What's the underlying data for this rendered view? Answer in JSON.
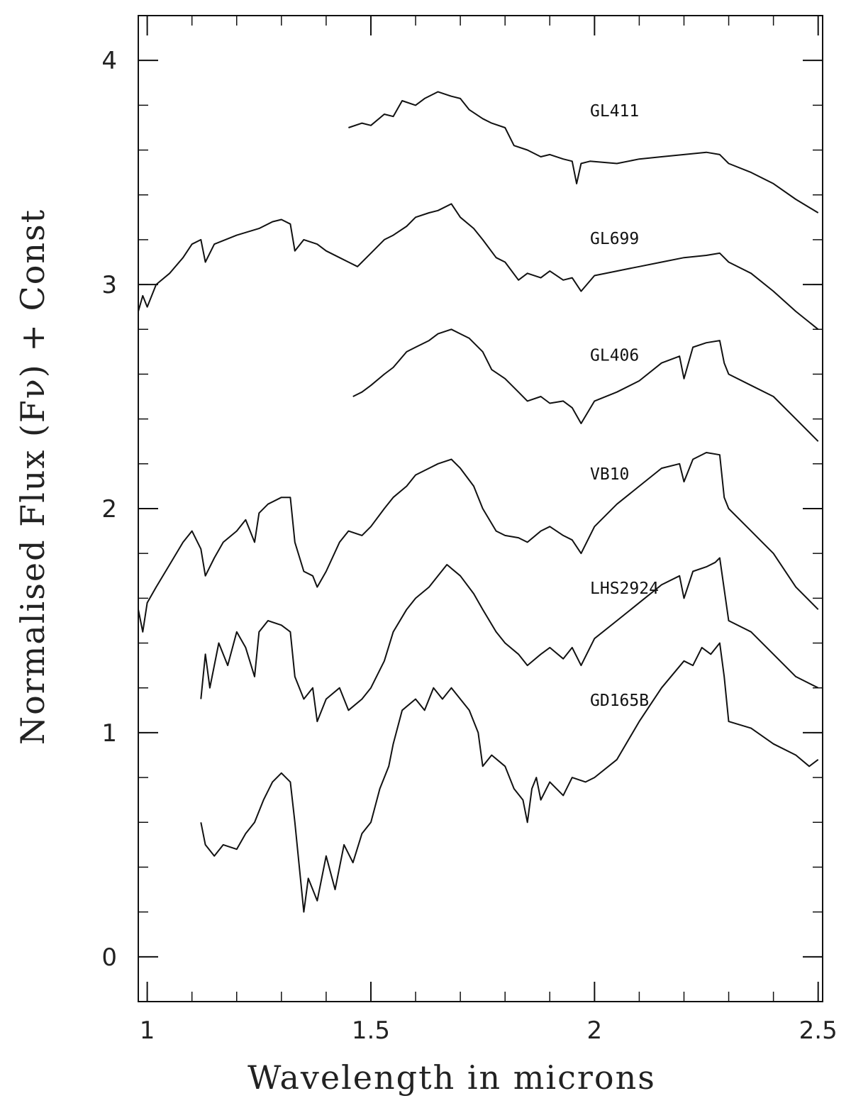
{
  "chart_data": {
    "type": "line",
    "xlabel": "Wavelength in microns",
    "ylabel": "Normalised Flux (Fν) + Const",
    "xlim": [
      0.98,
      2.51
    ],
    "ylim": [
      -0.2,
      4.2
    ],
    "x_ticks": [
      1,
      1.5,
      2,
      2.5
    ],
    "x_tick_labels": [
      "1",
      "1.5",
      "2",
      "2.5"
    ],
    "y_ticks": [
      0,
      1,
      2,
      3,
      4
    ],
    "y_tick_labels": [
      "0",
      "1",
      "2",
      "3",
      "4"
    ],
    "x_minor_step": 0.1,
    "y_minor_step": 0.2,
    "grid": false,
    "series": [
      {
        "name": "GL411",
        "label_pos": [
          1.99,
          3.75
        ],
        "x": [
          1.45,
          1.48,
          1.5,
          1.53,
          1.55,
          1.57,
          1.6,
          1.62,
          1.65,
          1.68,
          1.7,
          1.72,
          1.75,
          1.77,
          1.8,
          1.82,
          1.85,
          1.88,
          1.9,
          1.93,
          1.95,
          1.96,
          1.97,
          1.99,
          2.05,
          2.1,
          2.15,
          2.2,
          2.25,
          2.28,
          2.3,
          2.35,
          2.4,
          2.45,
          2.5
        ],
        "y": [
          3.7,
          3.72,
          3.71,
          3.76,
          3.75,
          3.82,
          3.8,
          3.83,
          3.86,
          3.84,
          3.83,
          3.78,
          3.74,
          3.72,
          3.7,
          3.62,
          3.6,
          3.57,
          3.58,
          3.56,
          3.55,
          3.45,
          3.54,
          3.55,
          3.54,
          3.56,
          3.57,
          3.58,
          3.59,
          3.58,
          3.54,
          3.5,
          3.45,
          3.38,
          3.32
        ]
      },
      {
        "name": "GL699",
        "label_pos": [
          1.99,
          3.18
        ],
        "x": [
          0.98,
          0.99,
          1.0,
          1.02,
          1.05,
          1.08,
          1.1,
          1.12,
          1.13,
          1.15,
          1.2,
          1.25,
          1.28,
          1.3,
          1.32,
          1.33,
          1.35,
          1.38,
          1.4,
          1.43,
          1.45,
          1.47,
          1.5,
          1.53,
          1.55,
          1.58,
          1.6,
          1.63,
          1.65,
          1.68,
          1.7,
          1.73,
          1.75,
          1.78,
          1.8,
          1.83,
          1.85,
          1.88,
          1.9,
          1.93,
          1.95,
          1.97,
          2.0,
          2.05,
          2.1,
          2.15,
          2.2,
          2.25,
          2.28,
          2.3,
          2.35,
          2.4,
          2.45,
          2.5
        ],
        "y": [
          2.88,
          2.95,
          2.9,
          3.0,
          3.05,
          3.12,
          3.18,
          3.2,
          3.1,
          3.18,
          3.22,
          3.25,
          3.28,
          3.29,
          3.27,
          3.15,
          3.2,
          3.18,
          3.15,
          3.12,
          3.1,
          3.08,
          3.14,
          3.2,
          3.22,
          3.26,
          3.3,
          3.32,
          3.33,
          3.36,
          3.3,
          3.25,
          3.2,
          3.12,
          3.1,
          3.02,
          3.05,
          3.03,
          3.06,
          3.02,
          3.03,
          2.97,
          3.04,
          3.06,
          3.08,
          3.1,
          3.12,
          3.13,
          3.14,
          3.1,
          3.05,
          2.97,
          2.88,
          2.8
        ]
      },
      {
        "name": "GL406",
        "label_pos": [
          1.99,
          2.66
        ],
        "x": [
          1.46,
          1.48,
          1.5,
          1.53,
          1.55,
          1.58,
          1.6,
          1.63,
          1.65,
          1.68,
          1.7,
          1.72,
          1.75,
          1.77,
          1.8,
          1.83,
          1.85,
          1.88,
          1.9,
          1.93,
          1.95,
          1.97,
          2.0,
          2.05,
          2.1,
          2.15,
          2.19,
          2.2,
          2.22,
          2.25,
          2.28,
          2.29,
          2.3,
          2.35,
          2.4,
          2.45,
          2.5
        ],
        "y": [
          2.5,
          2.52,
          2.55,
          2.6,
          2.63,
          2.7,
          2.72,
          2.75,
          2.78,
          2.8,
          2.78,
          2.76,
          2.7,
          2.62,
          2.58,
          2.52,
          2.48,
          2.5,
          2.47,
          2.48,
          2.45,
          2.38,
          2.48,
          2.52,
          2.57,
          2.65,
          2.68,
          2.58,
          2.72,
          2.74,
          2.75,
          2.65,
          2.6,
          2.55,
          2.5,
          2.4,
          2.3
        ]
      },
      {
        "name": "VB10",
        "label_pos": [
          1.99,
          2.13
        ],
        "x": [
          0.98,
          0.99,
          1.0,
          1.02,
          1.05,
          1.08,
          1.1,
          1.12,
          1.13,
          1.15,
          1.17,
          1.2,
          1.22,
          1.24,
          1.25,
          1.27,
          1.3,
          1.32,
          1.33,
          1.35,
          1.37,
          1.38,
          1.4,
          1.43,
          1.45,
          1.48,
          1.5,
          1.53,
          1.55,
          1.58,
          1.6,
          1.63,
          1.65,
          1.68,
          1.7,
          1.73,
          1.75,
          1.78,
          1.8,
          1.83,
          1.85,
          1.88,
          1.9,
          1.93,
          1.95,
          1.97,
          2.0,
          2.05,
          2.1,
          2.15,
          2.19,
          2.2,
          2.22,
          2.25,
          2.28,
          2.29,
          2.3,
          2.35,
          2.4,
          2.45,
          2.5
        ],
        "y": [
          1.55,
          1.45,
          1.58,
          1.65,
          1.75,
          1.85,
          1.9,
          1.82,
          1.7,
          1.78,
          1.85,
          1.9,
          1.95,
          1.85,
          1.98,
          2.02,
          2.05,
          2.05,
          1.85,
          1.72,
          1.7,
          1.65,
          1.72,
          1.85,
          1.9,
          1.88,
          1.92,
          2.0,
          2.05,
          2.1,
          2.15,
          2.18,
          2.2,
          2.22,
          2.18,
          2.1,
          2.0,
          1.9,
          1.88,
          1.87,
          1.85,
          1.9,
          1.92,
          1.88,
          1.86,
          1.8,
          1.92,
          2.02,
          2.1,
          2.18,
          2.2,
          2.12,
          2.22,
          2.25,
          2.24,
          2.05,
          2.0,
          1.9,
          1.8,
          1.65,
          1.55
        ]
      },
      {
        "name": "LHS2924",
        "label_pos": [
          1.99,
          1.62
        ],
        "x": [
          1.12,
          1.13,
          1.14,
          1.16,
          1.18,
          1.2,
          1.22,
          1.24,
          1.25,
          1.27,
          1.3,
          1.32,
          1.33,
          1.35,
          1.37,
          1.38,
          1.4,
          1.43,
          1.45,
          1.48,
          1.5,
          1.53,
          1.55,
          1.58,
          1.6,
          1.63,
          1.65,
          1.67,
          1.7,
          1.73,
          1.75,
          1.78,
          1.8,
          1.83,
          1.85,
          1.88,
          1.9,
          1.93,
          1.95,
          1.97,
          2.0,
          2.05,
          2.1,
          2.15,
          2.19,
          2.2,
          2.22,
          2.25,
          2.27,
          2.28,
          2.3,
          2.35,
          2.4,
          2.45,
          2.5
        ],
        "y": [
          1.15,
          1.35,
          1.2,
          1.4,
          1.3,
          1.45,
          1.38,
          1.25,
          1.45,
          1.5,
          1.48,
          1.45,
          1.25,
          1.15,
          1.2,
          1.05,
          1.15,
          1.2,
          1.1,
          1.15,
          1.2,
          1.32,
          1.45,
          1.55,
          1.6,
          1.65,
          1.7,
          1.75,
          1.7,
          1.62,
          1.55,
          1.45,
          1.4,
          1.35,
          1.3,
          1.35,
          1.38,
          1.33,
          1.38,
          1.3,
          1.42,
          1.5,
          1.58,
          1.66,
          1.7,
          1.6,
          1.72,
          1.74,
          1.76,
          1.78,
          1.5,
          1.45,
          1.35,
          1.25,
          1.2
        ]
      },
      {
        "name": "GD165B",
        "label_pos": [
          1.99,
          1.12
        ],
        "x": [
          1.12,
          1.13,
          1.15,
          1.17,
          1.2,
          1.22,
          1.24,
          1.26,
          1.28,
          1.3,
          1.32,
          1.33,
          1.34,
          1.35,
          1.36,
          1.38,
          1.4,
          1.42,
          1.44,
          1.46,
          1.48,
          1.5,
          1.52,
          1.54,
          1.55,
          1.57,
          1.6,
          1.62,
          1.64,
          1.66,
          1.68,
          1.7,
          1.72,
          1.74,
          1.75,
          1.77,
          1.8,
          1.82,
          1.84,
          1.85,
          1.86,
          1.87,
          1.88,
          1.9,
          1.93,
          1.95,
          1.98,
          2.0,
          2.05,
          2.1,
          2.15,
          2.2,
          2.22,
          2.24,
          2.26,
          2.28,
          2.29,
          2.3,
          2.35,
          2.4,
          2.45,
          2.48,
          2.5
        ],
        "y": [
          0.6,
          0.5,
          0.45,
          0.5,
          0.48,
          0.55,
          0.6,
          0.7,
          0.78,
          0.82,
          0.78,
          0.6,
          0.4,
          0.2,
          0.35,
          0.25,
          0.45,
          0.3,
          0.5,
          0.42,
          0.55,
          0.6,
          0.75,
          0.85,
          0.95,
          1.1,
          1.15,
          1.1,
          1.2,
          1.15,
          1.2,
          1.15,
          1.1,
          1.0,
          0.85,
          0.9,
          0.85,
          0.75,
          0.7,
          0.6,
          0.75,
          0.8,
          0.7,
          0.78,
          0.72,
          0.8,
          0.78,
          0.8,
          0.88,
          1.05,
          1.2,
          1.32,
          1.3,
          1.38,
          1.35,
          1.4,
          1.25,
          1.05,
          1.02,
          0.95,
          0.9,
          0.85,
          0.88
        ]
      }
    ]
  }
}
